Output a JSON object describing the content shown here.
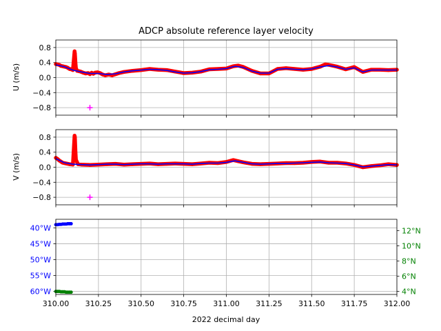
{
  "chart_data": [
    {
      "type": "line",
      "title": "ADCP absolute reference layer velocity",
      "ylabel": "U (m/s)",
      "xlim": [
        310.0,
        312.0
      ],
      "ylim": [
        -1.0,
        1.0
      ],
      "yticks": [
        0.8,
        0.4,
        0.0,
        -0.4,
        -0.8
      ],
      "ytick_labels": [
        "0.8",
        "0.4",
        "0.0",
        "−0.4",
        "−0.8"
      ],
      "grid": true,
      "series": [
        {
          "style": "dots",
          "color": "#ff0000",
          "points": [
            [
              310.0,
              0.36
            ],
            [
              310.01,
              0.35
            ],
            [
              310.02,
              0.34
            ],
            [
              310.03,
              0.31
            ],
            [
              310.04,
              0.3
            ],
            [
              310.05,
              0.29
            ],
            [
              310.06,
              0.28
            ],
            [
              310.07,
              0.26
            ],
            [
              310.08,
              0.23
            ],
            [
              310.09,
              0.22
            ],
            [
              310.1,
              0.2
            ],
            [
              310.11,
              0.7
            ],
            [
              310.112,
              0.64
            ],
            [
              310.115,
              0.4
            ],
            [
              310.118,
              0.25
            ],
            [
              310.125,
              0.18
            ],
            [
              310.135,
              0.17
            ],
            [
              310.145,
              0.16
            ],
            [
              310.16,
              0.13
            ],
            [
              310.175,
              0.11
            ],
            [
              310.19,
              0.12
            ],
            [
              310.2,
              0.09
            ],
            [
              310.21,
              0.13
            ],
            [
              310.22,
              0.1
            ],
            [
              310.23,
              0.13
            ],
            [
              310.245,
              0.14
            ],
            [
              310.26,
              0.12
            ],
            [
              310.275,
              0.08
            ],
            [
              310.29,
              0.06
            ],
            [
              310.31,
              0.08
            ],
            [
              310.33,
              0.06
            ],
            [
              310.35,
              0.09
            ],
            [
              310.37,
              0.12
            ],
            [
              310.4,
              0.15
            ],
            [
              310.45,
              0.18
            ],
            [
              310.5,
              0.2
            ],
            [
              310.55,
              0.23
            ],
            [
              310.6,
              0.21
            ],
            [
              310.65,
              0.2
            ],
            [
              310.7,
              0.16
            ],
            [
              310.75,
              0.12
            ],
            [
              310.8,
              0.13
            ],
            [
              310.85,
              0.16
            ],
            [
              310.9,
              0.22
            ],
            [
              310.95,
              0.23
            ],
            [
              311.0,
              0.24
            ],
            [
              311.04,
              0.3
            ],
            [
              311.07,
              0.32
            ],
            [
              311.1,
              0.28
            ],
            [
              311.15,
              0.18
            ],
            [
              311.2,
              0.11
            ],
            [
              311.25,
              0.11
            ],
            [
              311.3,
              0.23
            ],
            [
              311.35,
              0.25
            ],
            [
              311.4,
              0.23
            ],
            [
              311.45,
              0.21
            ],
            [
              311.5,
              0.23
            ],
            [
              311.55,
              0.29
            ],
            [
              311.58,
              0.35
            ],
            [
              311.6,
              0.34
            ],
            [
              311.65,
              0.29
            ],
            [
              311.7,
              0.22
            ],
            [
              311.75,
              0.28
            ],
            [
              311.8,
              0.15
            ],
            [
              311.85,
              0.21
            ],
            [
              311.9,
              0.21
            ],
            [
              311.95,
              0.2
            ],
            [
              312.0,
              0.21
            ]
          ]
        },
        {
          "style": "line",
          "color": "#0000ff",
          "points": [
            [
              310.0,
              0.34
            ],
            [
              310.05,
              0.29
            ],
            [
              310.1,
              0.2
            ],
            [
              310.15,
              0.15
            ],
            [
              310.2,
              0.11
            ],
            [
              310.25,
              0.11
            ],
            [
              310.3,
              0.08
            ],
            [
              310.35,
              0.1
            ],
            [
              310.4,
              0.15
            ],
            [
              310.45,
              0.18
            ],
            [
              310.5,
              0.2
            ],
            [
              310.55,
              0.22
            ],
            [
              310.6,
              0.21
            ],
            [
              310.65,
              0.19
            ],
            [
              310.7,
              0.15
            ],
            [
              310.75,
              0.12
            ],
            [
              310.8,
              0.13
            ],
            [
              310.85,
              0.16
            ],
            [
              310.9,
              0.21
            ],
            [
              310.95,
              0.22
            ],
            [
              311.0,
              0.24
            ],
            [
              311.05,
              0.3
            ],
            [
              311.1,
              0.27
            ],
            [
              311.15,
              0.17
            ],
            [
              311.2,
              0.12
            ],
            [
              311.25,
              0.12
            ],
            [
              311.3,
              0.22
            ],
            [
              311.35,
              0.24
            ],
            [
              311.4,
              0.22
            ],
            [
              311.45,
              0.21
            ],
            [
              311.5,
              0.23
            ],
            [
              311.55,
              0.28
            ],
            [
              311.6,
              0.32
            ],
            [
              311.65,
              0.28
            ],
            [
              311.7,
              0.22
            ],
            [
              311.75,
              0.26
            ],
            [
              311.8,
              0.15
            ],
            [
              311.85,
              0.2
            ],
            [
              311.9,
              0.2
            ],
            [
              311.95,
              0.2
            ],
            [
              312.0,
              0.2
            ]
          ]
        },
        {
          "style": "plus",
          "color": "#ff00ff",
          "points": [
            [
              310.2,
              -0.8
            ]
          ]
        }
      ]
    },
    {
      "type": "line",
      "ylabel": "V (m/s)",
      "xlim": [
        310.0,
        312.0
      ],
      "ylim": [
        -1.0,
        1.0
      ],
      "yticks": [
        0.8,
        0.4,
        0.0,
        -0.4,
        -0.8
      ],
      "ytick_labels": [
        "0.8",
        "0.4",
        "0.0",
        "−0.4",
        "−0.8"
      ],
      "grid": true,
      "series": [
        {
          "style": "dots",
          "color": "#ff0000",
          "points": [
            [
              310.0,
              0.25
            ],
            [
              310.01,
              0.22
            ],
            [
              310.02,
              0.18
            ],
            [
              310.03,
              0.15
            ],
            [
              310.04,
              0.12
            ],
            [
              310.06,
              0.1
            ],
            [
              310.08,
              0.08
            ],
            [
              310.1,
              0.07
            ],
            [
              310.11,
              0.84
            ],
            [
              310.112,
              0.8
            ],
            [
              310.115,
              0.42
            ],
            [
              310.118,
              0.2
            ],
            [
              310.13,
              0.08
            ],
            [
              310.15,
              0.07
            ],
            [
              310.2,
              0.06
            ],
            [
              310.25,
              0.07
            ],
            [
              310.3,
              0.08
            ],
            [
              310.35,
              0.09
            ],
            [
              310.4,
              0.07
            ],
            [
              310.45,
              0.08
            ],
            [
              310.5,
              0.09
            ],
            [
              310.55,
              0.1
            ],
            [
              310.6,
              0.08
            ],
            [
              310.65,
              0.09
            ],
            [
              310.7,
              0.1
            ],
            [
              310.75,
              0.09
            ],
            [
              310.8,
              0.08
            ],
            [
              310.85,
              0.1
            ],
            [
              310.9,
              0.12
            ],
            [
              310.95,
              0.11
            ],
            [
              311.0,
              0.14
            ],
            [
              311.04,
              0.19
            ],
            [
              311.07,
              0.16
            ],
            [
              311.1,
              0.13
            ],
            [
              311.15,
              0.09
            ],
            [
              311.2,
              0.08
            ],
            [
              311.25,
              0.09
            ],
            [
              311.3,
              0.1
            ],
            [
              311.35,
              0.11
            ],
            [
              311.4,
              0.11
            ],
            [
              311.45,
              0.12
            ],
            [
              311.5,
              0.14
            ],
            [
              311.55,
              0.15
            ],
            [
              311.6,
              0.12
            ],
            [
              311.65,
              0.12
            ],
            [
              311.7,
              0.1
            ],
            [
              311.75,
              0.06
            ],
            [
              311.8,
              0.0
            ],
            [
              311.85,
              0.03
            ],
            [
              311.9,
              0.05
            ],
            [
              311.95,
              0.08
            ],
            [
              312.0,
              0.06
            ]
          ]
        },
        {
          "style": "line",
          "color": "#0000ff",
          "points": [
            [
              310.0,
              0.23
            ],
            [
              310.05,
              0.12
            ],
            [
              310.1,
              0.08
            ],
            [
              310.15,
              0.07
            ],
            [
              310.2,
              0.06
            ],
            [
              310.25,
              0.07
            ],
            [
              310.3,
              0.08
            ],
            [
              310.35,
              0.08
            ],
            [
              310.4,
              0.07
            ],
            [
              310.45,
              0.08
            ],
            [
              310.5,
              0.09
            ],
            [
              310.55,
              0.09
            ],
            [
              310.6,
              0.08
            ],
            [
              310.65,
              0.09
            ],
            [
              310.7,
              0.09
            ],
            [
              310.75,
              0.09
            ],
            [
              310.8,
              0.08
            ],
            [
              310.85,
              0.1
            ],
            [
              310.9,
              0.11
            ],
            [
              310.95,
              0.11
            ],
            [
              311.0,
              0.13
            ],
            [
              311.05,
              0.17
            ],
            [
              311.1,
              0.13
            ],
            [
              311.15,
              0.09
            ],
            [
              311.2,
              0.08
            ],
            [
              311.25,
              0.09
            ],
            [
              311.3,
              0.1
            ],
            [
              311.35,
              0.1
            ],
            [
              311.4,
              0.11
            ],
            [
              311.45,
              0.12
            ],
            [
              311.5,
              0.13
            ],
            [
              311.55,
              0.14
            ],
            [
              311.6,
              0.12
            ],
            [
              311.65,
              0.11
            ],
            [
              311.7,
              0.1
            ],
            [
              311.75,
              0.06
            ],
            [
              311.8,
              0.01
            ],
            [
              311.85,
              0.03
            ],
            [
              311.9,
              0.05
            ],
            [
              311.95,
              0.07
            ],
            [
              312.0,
              0.06
            ]
          ]
        },
        {
          "style": "plus",
          "color": "#ff00ff",
          "points": [
            [
              310.2,
              -0.8
            ]
          ]
        }
      ]
    },
    {
      "type": "line",
      "xlabel": "2022 decimal day",
      "xlim": [
        310.0,
        312.0
      ],
      "xticks": [
        310.0,
        310.25,
        310.5,
        310.75,
        311.0,
        311.25,
        311.5,
        311.75,
        312.0
      ],
      "xtick_labels": [
        "310.00",
        "310.25",
        "310.50",
        "310.75",
        "311.00",
        "311.25",
        "311.50",
        "311.75",
        "312.00"
      ],
      "grid": true,
      "left_axis": {
        "color": "#0000ff",
        "ylim": [
          -61,
          -37.3
        ],
        "yticks": [
          -40,
          -45,
          -50,
          -55,
          -60
        ],
        "ytick_labels": [
          "40°W",
          "45°W",
          "50°W",
          "55°W",
          "60°W"
        ]
      },
      "right_axis": {
        "color": "#008000",
        "ylim": [
          3.6,
          13.5
        ],
        "yticks": [
          12,
          10,
          8,
          6,
          4
        ],
        "ytick_labels": [
          "12°N",
          "10°N",
          "8°N",
          "6°N",
          "4°N"
        ]
      },
      "series": [
        {
          "axis": "left",
          "color": "#0000ff",
          "points": [
            [
              310.0,
              -39.0
            ],
            [
              310.01,
              -39.0
            ],
            [
              310.02,
              -38.9
            ],
            [
              310.03,
              -38.9
            ],
            [
              310.04,
              -38.8
            ],
            [
              310.05,
              -38.8
            ],
            [
              310.06,
              -38.8
            ],
            [
              310.07,
              -38.7
            ],
            [
              310.08,
              -38.7
            ],
            [
              310.09,
              -38.7
            ]
          ]
        },
        {
          "axis": "right",
          "color": "#008000",
          "points": [
            [
              310.0,
              4.0
            ],
            [
              310.01,
              4.0
            ],
            [
              310.02,
              4.0
            ],
            [
              310.03,
              3.95
            ],
            [
              310.04,
              3.95
            ],
            [
              310.05,
              3.95
            ],
            [
              310.06,
              3.9
            ],
            [
              310.07,
              3.9
            ],
            [
              310.08,
              3.9
            ],
            [
              310.09,
              3.9
            ]
          ]
        }
      ]
    }
  ]
}
